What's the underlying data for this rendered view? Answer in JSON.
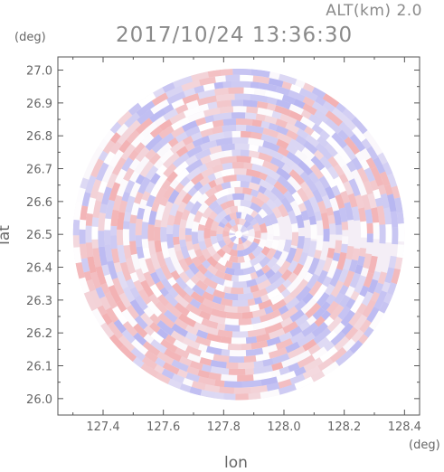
{
  "header": {
    "altitude": "ALT(km) 2.0",
    "timestamp": "2017/10/24 13:36:30"
  },
  "chart_data": {
    "type": "heatmap",
    "title": "2017/10/24 13:36:30",
    "xlabel": "lon",
    "ylabel": "lat",
    "x_unit": "(deg)",
    "y_unit": "(deg)",
    "xlim": [
      127.25,
      128.45
    ],
    "ylim": [
      25.95,
      27.04
    ],
    "x_ticks": [
      127.4,
      127.6,
      127.8,
      128.0,
      128.2,
      128.4
    ],
    "x_tick_labels": [
      "127.4",
      "127.6",
      "127.8",
      "128.0",
      "128.2",
      "128.4"
    ],
    "y_ticks": [
      26.0,
      26.1,
      26.2,
      26.3,
      26.4,
      26.5,
      26.6,
      26.7,
      26.8,
      26.9,
      27.0
    ],
    "y_tick_labels": [
      "26.0",
      "26.1",
      "26.2",
      "26.3",
      "26.4",
      "26.5",
      "26.6",
      "26.7",
      "26.8",
      "26.9",
      "27.0"
    ],
    "radar_center": [
      127.85,
      26.5
    ],
    "radar_radius_deg": 0.55,
    "colors": {
      "positive": "#f2a0a0",
      "negative": "#a8a8f0",
      "axis": "#555555"
    }
  }
}
